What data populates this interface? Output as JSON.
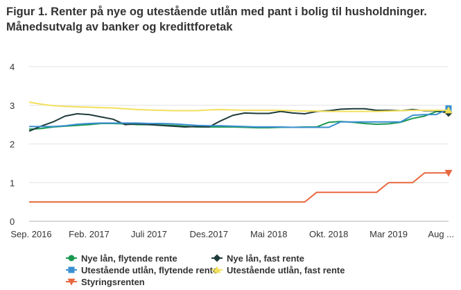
{
  "chart_data": {
    "type": "line",
    "title": "Figur 1. Renter på nye og utestående utlån med pant i bolig til husholdninger. Månedsutvalg av banker og kredittforetak",
    "xlabel": "",
    "ylabel": "",
    "ylim": [
      0,
      4
    ],
    "yticks": [
      "0",
      "1",
      "2",
      "3",
      "4"
    ],
    "xtick_labels": [
      "Sep. 2016",
      "Feb. 2017",
      "Juli 2017",
      "Des.2017",
      "Mai 2018",
      "Okt. 2018",
      "Mar 2019",
      "Aug ..."
    ],
    "xtick_positions": [
      0,
      5,
      10,
      15,
      20,
      25,
      30,
      35
    ],
    "x_count": 36,
    "grid": true,
    "legend_position": "bottom",
    "series": [
      {
        "name": "Nye lån, flytende rente",
        "color": "#1a9850",
        "marker": "circle",
        "values": [
          2.38,
          2.4,
          2.44,
          2.46,
          2.48,
          2.5,
          2.53,
          2.53,
          2.52,
          2.5,
          2.5,
          2.49,
          2.48,
          2.46,
          2.44,
          2.44,
          2.44,
          2.44,
          2.43,
          2.42,
          2.42,
          2.43,
          2.43,
          2.44,
          2.44,
          2.56,
          2.58,
          2.56,
          2.53,
          2.51,
          2.52,
          2.56,
          2.66,
          2.72,
          2.84,
          2.83
        ]
      },
      {
        "name": "Nye lån, fast rente",
        "color": "#1f3b3a",
        "marker": "diamond",
        "values": [
          2.33,
          2.46,
          2.57,
          2.72,
          2.78,
          2.76,
          2.7,
          2.64,
          2.5,
          2.52,
          2.5,
          2.48,
          2.46,
          2.44,
          2.45,
          2.44,
          2.6,
          2.74,
          2.8,
          2.79,
          2.79,
          2.84,
          2.8,
          2.78,
          2.84,
          2.86,
          2.9,
          2.91,
          2.91,
          2.87,
          2.87,
          2.86,
          2.89,
          2.86,
          2.86,
          2.8
        ]
      },
      {
        "name": "Utestående utlån, flytende rente",
        "color": "#3a8fd1",
        "marker": "square",
        "values": [
          2.45,
          2.45,
          2.45,
          2.47,
          2.51,
          2.53,
          2.54,
          2.54,
          2.54,
          2.54,
          2.53,
          2.53,
          2.52,
          2.5,
          2.48,
          2.47,
          2.47,
          2.46,
          2.45,
          2.44,
          2.44,
          2.44,
          2.43,
          2.43,
          2.43,
          2.43,
          2.57,
          2.57,
          2.57,
          2.57,
          2.57,
          2.57,
          2.74,
          2.76,
          2.76,
          2.92
        ]
      },
      {
        "name": "Utestående utlån, fast rente",
        "color": "#f2e05a",
        "marker": "triangle-up",
        "values": [
          3.08,
          3.03,
          2.99,
          2.97,
          2.96,
          2.95,
          2.94,
          2.93,
          2.91,
          2.89,
          2.88,
          2.87,
          2.86,
          2.86,
          2.86,
          2.88,
          2.89,
          2.88,
          2.87,
          2.87,
          2.87,
          2.87,
          2.86,
          2.85,
          2.85,
          2.84,
          2.84,
          2.84,
          2.84,
          2.84,
          2.85,
          2.86,
          2.87,
          2.87,
          2.87,
          2.87
        ]
      },
      {
        "name": "Styringsrenten",
        "color": "#e8683f",
        "marker": "triangle-down",
        "values": [
          0.5,
          0.5,
          0.5,
          0.5,
          0.5,
          0.5,
          0.5,
          0.5,
          0.5,
          0.5,
          0.5,
          0.5,
          0.5,
          0.5,
          0.5,
          0.5,
          0.5,
          0.5,
          0.5,
          0.5,
          0.5,
          0.5,
          0.5,
          0.5,
          0.75,
          0.75,
          0.75,
          0.75,
          0.75,
          0.75,
          1.0,
          1.0,
          1.0,
          1.25,
          1.25,
          1.25
        ]
      }
    ]
  }
}
